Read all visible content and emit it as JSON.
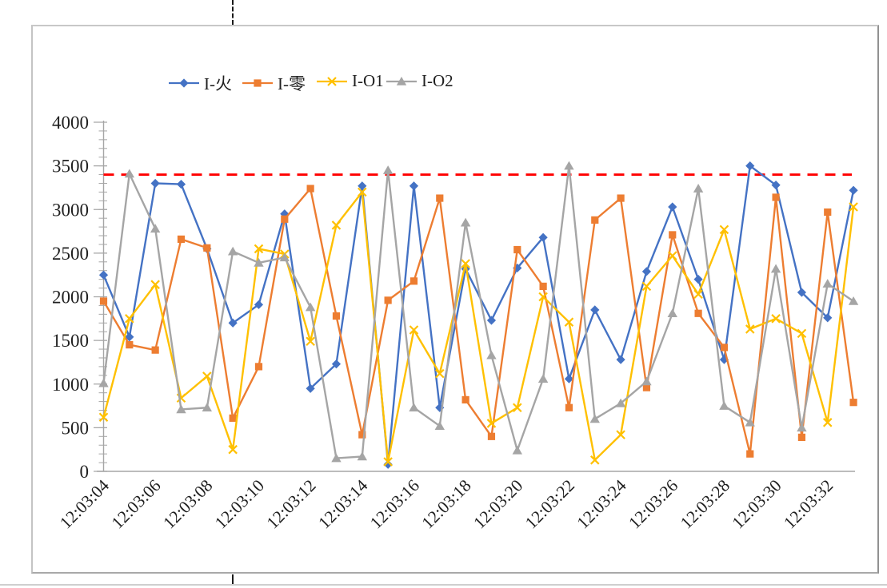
{
  "page": {
    "background": "#ffffff",
    "artifacts": {
      "page_break_dash_x": 290,
      "sheet_gridline_y": 731
    }
  },
  "chart_data": {
    "type": "line",
    "title": "",
    "xlabel": "",
    "ylabel": "",
    "x": [
      "12:03:04",
      "12:03:05",
      "12:03:06",
      "12:03:07",
      "12:03:08",
      "12:03:09",
      "12:03:10",
      "12:03:11",
      "12:03:12",
      "12:03:13",
      "12:03:14",
      "12:03:15",
      "12:03:16",
      "12:03:17",
      "12:03:18",
      "12:03:19",
      "12:03:20",
      "12:03:21",
      "12:03:22",
      "12:03:23",
      "12:03:24",
      "12:03:25",
      "12:03:26",
      "12:03:27",
      "12:03:28",
      "12:03:29",
      "12:03:30",
      "12:03:31",
      "12:03:32",
      "12:03:33"
    ],
    "x_label_step": 2,
    "ylim": [
      0,
      4000
    ],
    "y_major_step": 500,
    "y_minor_step": 100,
    "grid": false,
    "legend_position": "top",
    "axis_color": "#a6a6a6",
    "label_color": "#1f1f1f",
    "series": [
      {
        "name": "I-火",
        "color": "#4472C4",
        "marker": "diamond",
        "values": [
          2250,
          1540,
          3300,
          3290,
          2550,
          1700,
          1910,
          2950,
          950,
          1230,
          3270,
          80,
          3270,
          730,
          2320,
          1730,
          2330,
          2680,
          1060,
          1850,
          1280,
          2290,
          3030,
          2200,
          1280,
          3500,
          3280,
          2050,
          1760,
          3220
        ]
      },
      {
        "name": "I-零",
        "color": "#ED7D31",
        "marker": "square",
        "values": [
          1950,
          1450,
          1390,
          2660,
          2560,
          610,
          1200,
          2890,
          3240,
          1780,
          420,
          1960,
          2180,
          3130,
          820,
          400,
          2540,
          2120,
          730,
          2880,
          3130,
          960,
          2710,
          1810,
          1420,
          200,
          3140,
          390,
          2970,
          790
        ]
      },
      {
        "name": "I-O1",
        "color": "#FFC000",
        "marker": "x",
        "values": [
          620,
          1750,
          2140,
          840,
          1090,
          250,
          2550,
          2490,
          1490,
          2820,
          3200,
          110,
          1620,
          1120,
          2380,
          550,
          730,
          2000,
          1710,
          130,
          420,
          2120,
          2470,
          2030,
          2770,
          1630,
          1750,
          1580,
          560,
          3030
        ]
      },
      {
        "name": "I-O2",
        "color": "#A5A5A5",
        "marker": "triangle",
        "values": [
          1010,
          3410,
          2780,
          710,
          730,
          2520,
          2390,
          2450,
          1880,
          150,
          170,
          3450,
          730,
          520,
          2850,
          1330,
          240,
          1060,
          3500,
          600,
          780,
          1030,
          1810,
          3240,
          750,
          560,
          2320,
          500,
          2150,
          1950
        ]
      }
    ],
    "reference_line": {
      "value": 3400,
      "color": "#FF0000",
      "style": "dashed"
    }
  }
}
